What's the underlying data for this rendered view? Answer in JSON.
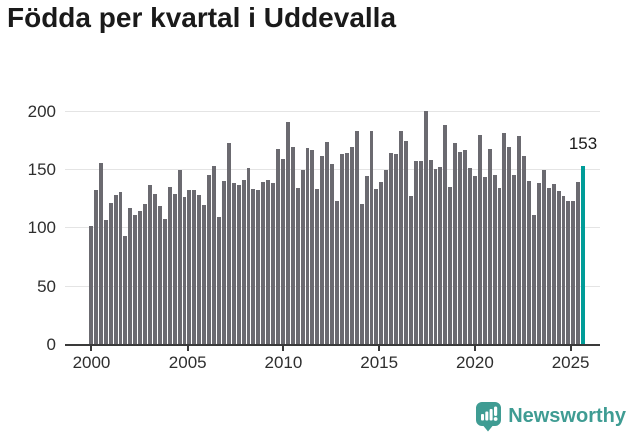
{
  "title": "Födda per kvartal i Uddevalla",
  "annotation": {
    "label": "153"
  },
  "footer": {
    "brand": "Newsworthy",
    "icon": "newsworthy-bubble-chart-icon"
  },
  "colors": {
    "bar": "#6b6a70",
    "highlight": "#009c98",
    "axis": "#3a3a3a",
    "grid": "#e4e4e4",
    "title_text": "#1a1a1a",
    "tick_text": "#2e2e2e",
    "logo": "#3f9c93"
  },
  "chart_data": {
    "type": "bar",
    "title": "Födda per kvartal i Uddevalla",
    "xlabel": "",
    "ylabel": "",
    "ylim": [
      0,
      204
    ],
    "y_ticks": [
      0,
      50,
      100,
      150,
      200
    ],
    "y_tick_labels": [
      "0",
      "50",
      "100",
      "150",
      "200"
    ],
    "x_tick_labels": [
      "2000",
      "2005",
      "2010",
      "2015",
      "2020",
      "2025"
    ],
    "grid": "horizontal",
    "legend": "none",
    "highlight_index": 100,
    "highlight_value": 153,
    "highlight_label": "153",
    "categories": [
      "2000 Q1",
      "2000 Q2",
      "2000 Q3",
      "2000 Q4",
      "2001 Q1",
      "2001 Q2",
      "2001 Q3",
      "2001 Q4",
      "2002 Q1",
      "2002 Q2",
      "2002 Q3",
      "2002 Q4",
      "2003 Q1",
      "2003 Q2",
      "2003 Q3",
      "2003 Q4",
      "2004 Q1",
      "2004 Q2",
      "2004 Q3",
      "2004 Q4",
      "2005 Q1",
      "2005 Q2",
      "2005 Q3",
      "2005 Q4",
      "2006 Q1",
      "2006 Q2",
      "2006 Q3",
      "2006 Q4",
      "2007 Q1",
      "2007 Q2",
      "2007 Q3",
      "2007 Q4",
      "2008 Q1",
      "2008 Q2",
      "2008 Q3",
      "2008 Q4",
      "2009 Q1",
      "2009 Q2",
      "2009 Q3",
      "2009 Q4",
      "2010 Q1",
      "2010 Q2",
      "2010 Q3",
      "2010 Q4",
      "2011 Q1",
      "2011 Q2",
      "2011 Q3",
      "2011 Q4",
      "2012 Q1",
      "2012 Q2",
      "2012 Q3",
      "2012 Q4",
      "2013 Q1",
      "2013 Q2",
      "2013 Q3",
      "2013 Q4",
      "2014 Q1",
      "2014 Q2",
      "2014 Q3",
      "2014 Q4",
      "2015 Q1",
      "2015 Q2",
      "2015 Q3",
      "2015 Q4",
      "2016 Q1",
      "2016 Q2",
      "2016 Q3",
      "2016 Q4",
      "2017 Q1",
      "2017 Q2",
      "2017 Q3",
      "2017 Q4",
      "2018 Q1",
      "2018 Q2",
      "2018 Q3",
      "2018 Q4",
      "2019 Q1",
      "2019 Q2",
      "2019 Q3",
      "2019 Q4",
      "2020 Q1",
      "2020 Q2",
      "2020 Q3",
      "2020 Q4",
      "2021 Q1",
      "2021 Q2",
      "2021 Q3",
      "2021 Q4",
      "2022 Q1",
      "2022 Q2",
      "2022 Q3",
      "2022 Q4",
      "2023 Q1",
      "2023 Q2",
      "2023 Q3",
      "2023 Q4",
      "2024 Q1",
      "2024 Q2",
      "2024 Q3",
      "2024 Q4",
      "2025 Q1"
    ],
    "values": [
      101,
      132,
      155,
      106,
      121,
      128,
      130,
      93,
      117,
      111,
      114,
      120,
      136,
      129,
      118,
      107,
      135,
      129,
      149,
      126,
      132,
      132,
      128,
      119,
      145,
      153,
      109,
      140,
      172,
      138,
      136,
      141,
      151,
      133,
      132,
      139,
      141,
      138,
      167,
      159,
      190,
      169,
      134,
      149,
      168,
      166,
      133,
      161,
      173,
      154,
      123,
      163,
      164,
      169,
      183,
      120,
      144,
      183,
      133,
      139,
      149,
      164,
      163,
      183,
      174,
      127,
      157,
      157,
      200,
      158,
      150,
      152,
      188,
      135,
      172,
      165,
      166,
      151,
      144,
      179,
      143,
      167,
      145,
      134,
      181,
      169,
      145,
      178,
      161,
      140,
      111,
      138,
      149,
      134,
      137,
      131,
      127,
      123,
      123,
      139,
      153
    ]
  }
}
